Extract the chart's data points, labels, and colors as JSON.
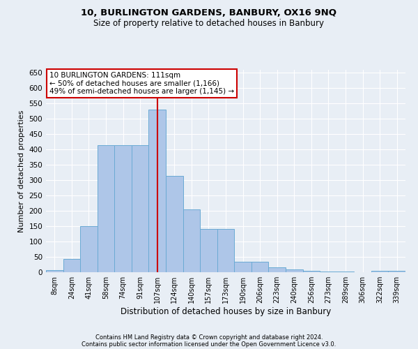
{
  "title1": "10, BURLINGTON GARDENS, BANBURY, OX16 9NQ",
  "title2": "Size of property relative to detached houses in Banbury",
  "xlabel": "Distribution of detached houses by size in Banbury",
  "ylabel": "Number of detached properties",
  "categories": [
    "8sqm",
    "24sqm",
    "41sqm",
    "58sqm",
    "74sqm",
    "91sqm",
    "107sqm",
    "124sqm",
    "140sqm",
    "157sqm",
    "173sqm",
    "190sqm",
    "206sqm",
    "223sqm",
    "240sqm",
    "256sqm",
    "273sqm",
    "289sqm",
    "306sqm",
    "322sqm",
    "339sqm"
  ],
  "values": [
    7,
    43,
    150,
    415,
    415,
    415,
    530,
    315,
    205,
    140,
    140,
    35,
    35,
    15,
    10,
    5,
    3,
    2,
    1,
    5,
    5
  ],
  "bar_color": "#aec6e8",
  "bar_edge_color": "#6aaad4",
  "background_color": "#e8eef5",
  "grid_color": "#ffffff",
  "vline_color": "#cc0000",
  "vline_x_index": 6,
  "annotation_text": "10 BURLINGTON GARDENS: 111sqm\n← 50% of detached houses are smaller (1,166)\n49% of semi-detached houses are larger (1,145) →",
  "annotation_box_color": "#ffffff",
  "annotation_box_edge": "#cc0000",
  "footer1": "Contains HM Land Registry data © Crown copyright and database right 2024.",
  "footer2": "Contains public sector information licensed under the Open Government Licence v3.0.",
  "ylim": [
    0,
    660
  ],
  "yticks": [
    0,
    50,
    100,
    150,
    200,
    250,
    300,
    350,
    400,
    450,
    500,
    550,
    600,
    650
  ]
}
